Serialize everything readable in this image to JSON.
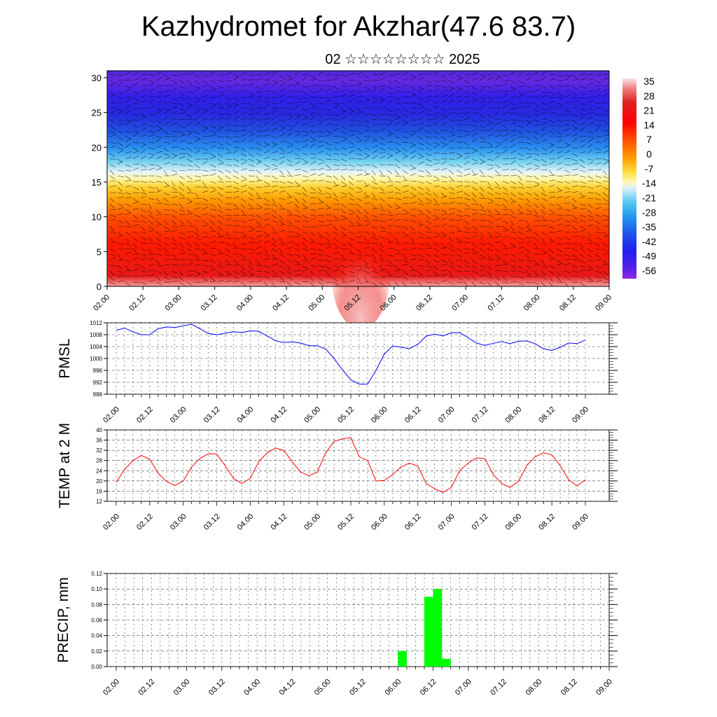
{
  "page": {
    "title": "Kazhydromet for Akzhar(47.6 83.7)",
    "subtitle": "02 ☆☆☆☆☆☆☆☆ 2025"
  },
  "colors": {
    "pmsl_line": "#0000ff",
    "temp_line": "#ff0000",
    "precip_bar": "#00ff00",
    "grid": "#555555"
  },
  "chart_data": [
    {
      "type": "heatmap",
      "name": "vertical-cross-section",
      "x_tick_labels": [
        "02.00",
        "02.12",
        "03.00",
        "03.12",
        "04.00",
        "04.12",
        "05.00",
        "05.12",
        "06.00",
        "06.12",
        "07.00",
        "07.12",
        "08.00",
        "08.12",
        "09.00"
      ],
      "y_ticks": [
        0,
        5,
        10,
        15,
        20,
        25,
        30
      ],
      "ylim": [
        0,
        31
      ],
      "colorbar": {
        "labels": [
          "35",
          "28",
          "21",
          "14",
          "7",
          "0",
          "-7",
          "-14",
          "-21",
          "-28",
          "-35",
          "-42",
          "-49",
          "-56"
        ],
        "stops": [
          "#f5f0f0",
          "#f08080",
          "#e82020",
          "#ff0000",
          "#ff4500",
          "#ff8c00",
          "#ffc000",
          "#fff060",
          "#ffffc0",
          "#c8e8f8",
          "#40c0f0",
          "#2080f0",
          "#2040e0",
          "#2020f0",
          "#6a20e0",
          "#8a2be2"
        ]
      },
      "wind_barbs": true
    },
    {
      "type": "line",
      "name": "pmsl",
      "ylabel": "PMSL",
      "ylim": [
        988,
        1012
      ],
      "y_ticks": [
        988,
        992,
        996,
        1000,
        1004,
        1008,
        1012
      ],
      "x_tick_labels": [
        "02.00",
        "02.12",
        "03.00",
        "03.12",
        "04.00",
        "04.12",
        "05.00",
        "05.12",
        "06.00",
        "06.12",
        "07.00",
        "07.12",
        "08.00",
        "08.12",
        "09.00"
      ],
      "x_hours": [
        0,
        3,
        6,
        9,
        12,
        15,
        18,
        21,
        24,
        27,
        30,
        33,
        36,
        39,
        42,
        45,
        48,
        51,
        54,
        57,
        60,
        63,
        66,
        69,
        72,
        75,
        78,
        81,
        84,
        87,
        90,
        93,
        96,
        99,
        102,
        105,
        108,
        111,
        114,
        117,
        120,
        123,
        126,
        129,
        132,
        135,
        138,
        141,
        144,
        147,
        150,
        153,
        156,
        159,
        162,
        165,
        168
      ],
      "values": [
        1009.5,
        1010.2,
        1009.0,
        1008.0,
        1008.0,
        1010.0,
        1010.6,
        1010.4,
        1011.0,
        1011.5,
        1010.0,
        1008.4,
        1008.0,
        1008.5,
        1009.0,
        1008.7,
        1009.3,
        1009.1,
        1007.6,
        1006.0,
        1005.4,
        1005.6,
        1005.2,
        1004.3,
        1004.3,
        1003.2,
        1000.0,
        996.2,
        992.8,
        991.4,
        991.4,
        996.0,
        1001.5,
        1004.2,
        1003.8,
        1003.3,
        1004.8,
        1007.5,
        1008.2,
        1007.6,
        1008.6,
        1008.7,
        1007.0,
        1005.2,
        1004.4,
        1005.1,
        1005.7,
        1005.0,
        1005.8,
        1005.9,
        1005.0,
        1003.3,
        1002.7,
        1003.8,
        1005.2,
        1005.0,
        1006.2
      ]
    },
    {
      "type": "line",
      "name": "temp-2m",
      "ylabel": "TEMP at 2 M",
      "ylim": [
        12,
        40
      ],
      "y_ticks": [
        12,
        16,
        20,
        24,
        28,
        32,
        36,
        40
      ],
      "x_tick_labels": [
        "02.00",
        "02.12",
        "03.00",
        "03.12",
        "04.00",
        "04.12",
        "05.00",
        "05.12",
        "06.00",
        "06.12",
        "07.00",
        "07.12",
        "08.00",
        "08.12",
        "09.00"
      ],
      "x_hours": [
        0,
        3,
        6,
        9,
        12,
        15,
        18,
        21,
        24,
        27,
        30,
        33,
        36,
        39,
        42,
        45,
        48,
        51,
        54,
        57,
        60,
        63,
        66,
        69,
        72,
        75,
        78,
        81,
        84,
        87,
        90,
        93,
        96,
        99,
        102,
        105,
        108,
        111,
        114,
        117,
        120,
        123,
        126,
        129,
        132,
        135,
        138,
        141,
        144,
        147,
        150,
        153,
        156,
        159,
        162,
        165,
        168
      ],
      "values": [
        19.5,
        24.5,
        28.0,
        30.0,
        28.5,
        23.0,
        19.8,
        18.2,
        20.0,
        25.5,
        28.8,
        30.7,
        30.5,
        26.0,
        21.0,
        19.0,
        21.0,
        27.5,
        31.0,
        32.9,
        32.0,
        27.5,
        23.5,
        22.0,
        23.5,
        31.0,
        35.5,
        36.5,
        37.0,
        29.5,
        28.0,
        20.0,
        20.2,
        22.5,
        25.5,
        27.0,
        25.8,
        19.0,
        17.0,
        15.5,
        17.5,
        24.0,
        27.0,
        29.0,
        28.8,
        22.5,
        19.0,
        17.5,
        19.8,
        26.0,
        29.5,
        31.0,
        30.2,
        26.0,
        20.5,
        18.0,
        20.5
      ]
    },
    {
      "type": "bar",
      "name": "precip",
      "ylabel": "PRECIP, mm",
      "ylim": [
        0,
        0.12
      ],
      "y_ticks": [
        0.0,
        0.02,
        0.04,
        0.06,
        0.08,
        0.1,
        0.12
      ],
      "y_tick_labels": [
        "0.00",
        "0.02",
        "0.04",
        "0.06",
        "0.08",
        "0.10",
        "0.12"
      ],
      "x_tick_labels": [
        "02.00",
        "02.12",
        "03.00",
        "03.12",
        "04.00",
        "04.12",
        "05.00",
        "05.12",
        "06.00",
        "06.12",
        "07.00",
        "07.12",
        "08.00",
        "08.12",
        "09.00"
      ],
      "bars": [
        {
          "x_hours": 97.5,
          "value": 0.02
        },
        {
          "x_hours": 106.5,
          "value": 0.09
        },
        {
          "x_hours": 109.5,
          "value": 0.1
        },
        {
          "x_hours": 112.5,
          "value": 0.01
        }
      ]
    }
  ]
}
